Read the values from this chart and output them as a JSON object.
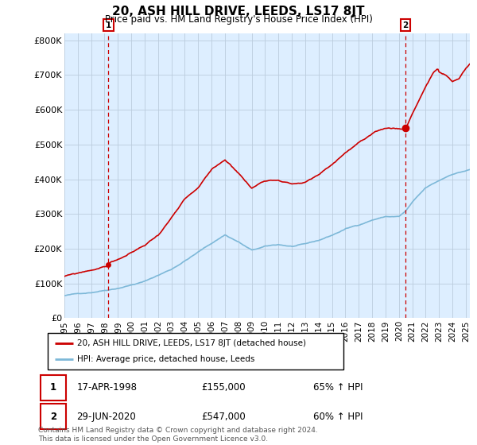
{
  "title": "20, ASH HILL DRIVE, LEEDS, LS17 8JT",
  "subtitle": "Price paid vs. HM Land Registry's House Price Index (HPI)",
  "ylabel_ticks": [
    "£0",
    "£100K",
    "£200K",
    "£300K",
    "£400K",
    "£500K",
    "£600K",
    "£700K",
    "£800K"
  ],
  "ytick_values": [
    0,
    100000,
    200000,
    300000,
    400000,
    500000,
    600000,
    700000,
    800000
  ],
  "ylim": [
    0,
    820000
  ],
  "xlim_start": 1995.0,
  "xlim_end": 2025.3,
  "hpi_color": "#7db8d8",
  "price_color": "#cc0000",
  "plot_bg_color": "#ddeeff",
  "marker1_date": 1998.29,
  "marker1_price": 155000,
  "marker1_label": "1",
  "marker1_text": "17-APR-1998",
  "marker1_amount": "£155,000",
  "marker1_pct": "65% ↑ HPI",
  "marker2_date": 2020.49,
  "marker2_price": 547000,
  "marker2_label": "2",
  "marker2_text": "29-JUN-2020",
  "marker2_amount": "£547,000",
  "marker2_pct": "60% ↑ HPI",
  "legend_line1": "20, ASH HILL DRIVE, LEEDS, LS17 8JT (detached house)",
  "legend_line2": "HPI: Average price, detached house, Leeds",
  "footnote": "Contains HM Land Registry data © Crown copyright and database right 2024.\nThis data is licensed under the Open Government Licence v3.0.",
  "background_color": "#ffffff",
  "grid_color": "#bbccdd",
  "xtick_years": [
    1995,
    1996,
    1997,
    1998,
    1999,
    2000,
    2001,
    2002,
    2003,
    2004,
    2005,
    2006,
    2007,
    2008,
    2009,
    2010,
    2011,
    2012,
    2013,
    2014,
    2015,
    2016,
    2017,
    2018,
    2019,
    2020,
    2021,
    2022,
    2023,
    2024,
    2025
  ]
}
